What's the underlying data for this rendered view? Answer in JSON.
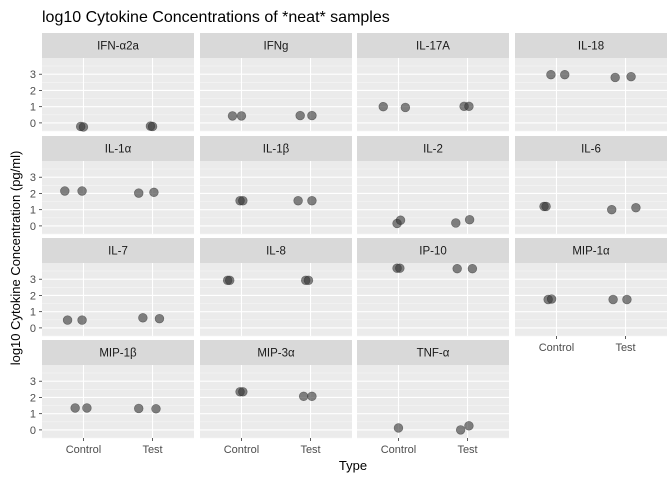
{
  "chart_data": {
    "type": "scatter",
    "title": "log10 Cytokine Concentrations of *neat* samples",
    "xlabel": "Type",
    "ylabel": "log10 Cytokine Concentration (pg/ml)",
    "x_categories": [
      "Control",
      "Test"
    ],
    "y_ticks": [
      0,
      1,
      2,
      3
    ],
    "ylim": [
      -0.5,
      4.0
    ],
    "grid": true,
    "point_color": "#333333",
    "point_opacity": 0.6,
    "panel_bg": "#ebebeb",
    "strip_bg": "#d9d9d9",
    "panels": [
      {
        "name": "IFN-α2a",
        "points": [
          {
            "x": 0.96,
            "y": -0.22
          },
          {
            "x": 1.0,
            "y": -0.25
          },
          {
            "x": 1.97,
            "y": -0.2
          },
          {
            "x": 2.0,
            "y": -0.22
          }
        ]
      },
      {
        "name": "IFNg",
        "points": [
          {
            "x": 0.87,
            "y": 0.43
          },
          {
            "x": 1.0,
            "y": 0.43
          },
          {
            "x": 1.85,
            "y": 0.45
          },
          {
            "x": 2.02,
            "y": 0.45
          }
        ]
      },
      {
        "name": "IL-17A",
        "points": [
          {
            "x": 0.78,
            "y": 1.0
          },
          {
            "x": 1.1,
            "y": 0.95
          },
          {
            "x": 1.95,
            "y": 1.02
          },
          {
            "x": 2.02,
            "y": 1.02
          }
        ]
      },
      {
        "name": "IL-18",
        "points": [
          {
            "x": 0.92,
            "y": 2.97
          },
          {
            "x": 1.12,
            "y": 2.97
          },
          {
            "x": 1.85,
            "y": 2.8
          },
          {
            "x": 2.08,
            "y": 2.85
          }
        ]
      },
      {
        "name": "IL-1α",
        "points": [
          {
            "x": 0.73,
            "y": 2.15
          },
          {
            "x": 0.98,
            "y": 2.15
          },
          {
            "x": 1.8,
            "y": 2.02
          },
          {
            "x": 2.02,
            "y": 2.07
          }
        ]
      },
      {
        "name": "IL-1β",
        "points": [
          {
            "x": 0.98,
            "y": 1.55
          },
          {
            "x": 1.02,
            "y": 1.55
          },
          {
            "x": 1.82,
            "y": 1.55
          },
          {
            "x": 2.02,
            "y": 1.55
          }
        ]
      },
      {
        "name": "IL-2",
        "points": [
          {
            "x": 0.98,
            "y": 0.15
          },
          {
            "x": 1.03,
            "y": 0.35
          },
          {
            "x": 1.83,
            "y": 0.18
          },
          {
            "x": 2.03,
            "y": 0.38
          }
        ]
      },
      {
        "name": "IL-6",
        "points": [
          {
            "x": 0.82,
            "y": 1.2
          },
          {
            "x": 0.85,
            "y": 1.2
          },
          {
            "x": 1.8,
            "y": 1.0
          },
          {
            "x": 2.15,
            "y": 1.12
          }
        ]
      },
      {
        "name": "IL-7",
        "points": [
          {
            "x": 0.77,
            "y": 0.48
          },
          {
            "x": 0.98,
            "y": 0.48
          },
          {
            "x": 1.86,
            "y": 0.62
          },
          {
            "x": 2.1,
            "y": 0.57
          }
        ]
      },
      {
        "name": "IL-8",
        "points": [
          {
            "x": 0.8,
            "y": 2.93
          },
          {
            "x": 0.83,
            "y": 2.93
          },
          {
            "x": 1.93,
            "y": 2.93
          },
          {
            "x": 1.97,
            "y": 2.93
          }
        ]
      },
      {
        "name": "IP-10",
        "points": [
          {
            "x": 0.98,
            "y": 3.68
          },
          {
            "x": 1.02,
            "y": 3.68
          },
          {
            "x": 1.85,
            "y": 3.65
          },
          {
            "x": 2.07,
            "y": 3.65
          }
        ]
      },
      {
        "name": "MIP-1α",
        "points": [
          {
            "x": 0.88,
            "y": 1.75
          },
          {
            "x": 0.93,
            "y": 1.78
          },
          {
            "x": 1.82,
            "y": 1.75
          },
          {
            "x": 2.02,
            "y": 1.75
          }
        ]
      },
      {
        "name": "MIP-1β",
        "points": [
          {
            "x": 0.88,
            "y": 1.35
          },
          {
            "x": 1.05,
            "y": 1.35
          },
          {
            "x": 1.8,
            "y": 1.32
          },
          {
            "x": 2.05,
            "y": 1.3
          }
        ]
      },
      {
        "name": "MIP-3α",
        "points": [
          {
            "x": 0.98,
            "y": 2.35
          },
          {
            "x": 1.02,
            "y": 2.35
          },
          {
            "x": 1.9,
            "y": 2.07
          },
          {
            "x": 2.02,
            "y": 2.07
          }
        ]
      },
      {
        "name": "TNF-α",
        "points": [
          {
            "x": 1.0,
            "y": 0.12
          },
          {
            "x": 1.9,
            "y": 0.0
          },
          {
            "x": 2.02,
            "y": 0.25
          }
        ]
      }
    ]
  }
}
